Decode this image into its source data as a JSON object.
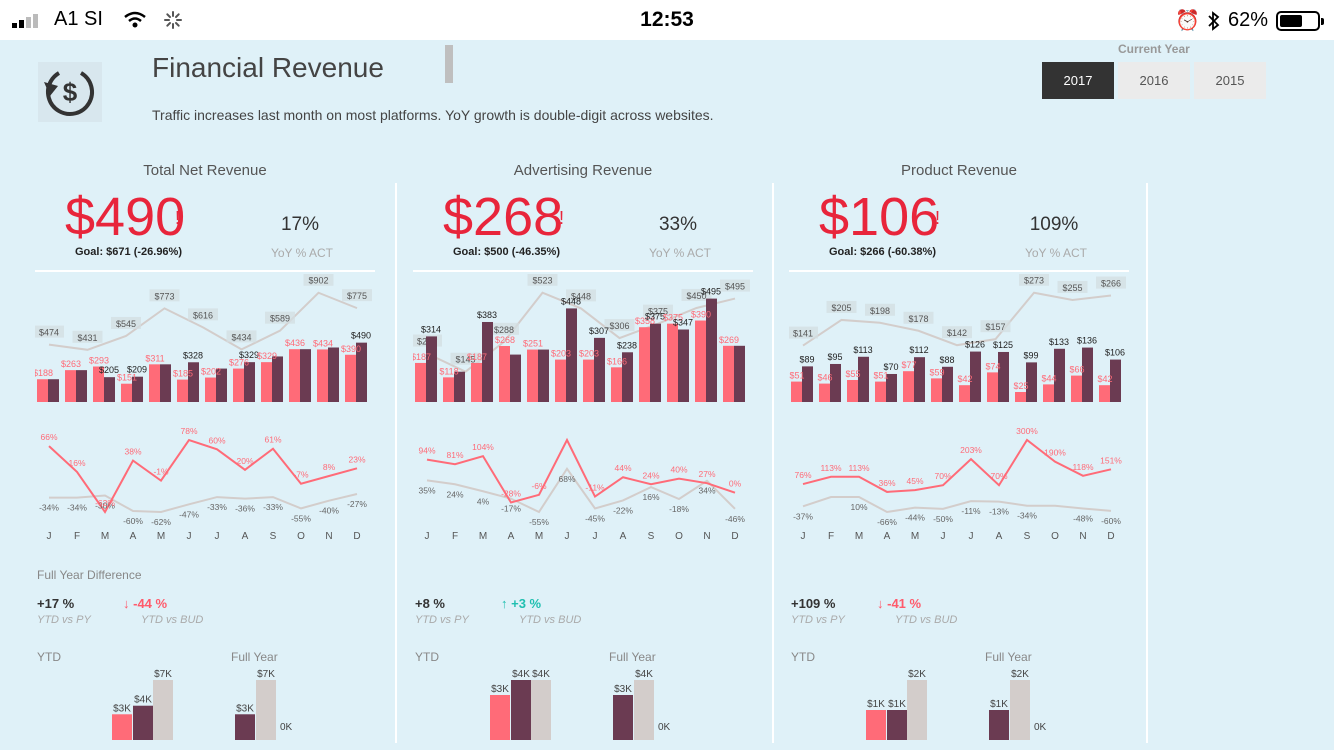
{
  "status": {
    "carrier": "A1 SI",
    "time": "12:53",
    "battery": "62%"
  },
  "header": {
    "title": "Financial Revenue",
    "subtitle": "Traffic increases last month on most platforms. YoY growth is double-digit across websites.",
    "year_label": "Current Year",
    "years": [
      "2017",
      "2016",
      "2015"
    ],
    "selected_year": "2017"
  },
  "months": [
    "J",
    "F",
    "M",
    "A",
    "M",
    "J",
    "J",
    "A",
    "S",
    "O",
    "N",
    "D"
  ],
  "colors": {
    "actual": "#ff6b78",
    "current": "#6b3b52",
    "budget": "#d3cdcb",
    "kpi_red": "#e8253b",
    "teal": "#1fbfb0"
  },
  "panels": [
    {
      "title": "Total Net Revenue",
      "kpi": "$490",
      "alert": "!",
      "goal": "Goal: $671 (-26.96%)",
      "yoy": "17%",
      "yoy_label": "YoY % ACT",
      "full_year_label": "Full Year Difference",
      "ytd_vs_py": "+17 %",
      "ytd_vs_py_label": "YTD vs PY",
      "ytd_vs_bud": "-44 %",
      "ytd_vs_bud_label": "YTD vs BUD",
      "ytd_vs_bud_dir": "down",
      "ytd_label": "YTD",
      "fy_label": "Full Year",
      "bars": {
        "budget": [
          474,
          431,
          545,
          773,
          616,
          434,
          589,
          902,
          775
        ],
        "budget_labels": [
          "$474",
          "$431",
          "$545",
          "$773",
          "$616",
          "$434",
          "$589",
          "$902",
          "$775"
        ],
        "actual": [
          188,
          263,
          293,
          151,
          311,
          185,
          202,
          276,
          329,
          436,
          434,
          390
        ],
        "actual_labels": [
          "$188",
          "$263",
          "$293",
          "$151",
          "$311",
          "$185",
          "$202",
          "$276",
          "$329",
          "$436",
          "$434",
          "$390"
        ],
        "current": [
          188,
          263,
          205,
          209,
          311,
          328,
          276,
          329,
          376,
          436,
          450,
          490
        ],
        "current_labels": [
          "",
          "",
          "$205",
          "$209",
          "",
          "$328",
          "",
          "$329",
          "",
          "",
          "",
          "$490"
        ]
      },
      "lines": {
        "actual_pct": [
          66,
          16,
          -62,
          38,
          -1,
          78,
          60,
          20,
          61,
          -7,
          8,
          23
        ],
        "actual_labels": [
          "66%",
          "16%",
          "-62%",
          "38%",
          "-1%",
          "78%",
          "60%",
          "20%",
          "61%",
          "-7%",
          "8%",
          "23%"
        ],
        "py_pct": [
          -34,
          -34,
          -30,
          -60,
          -62,
          -47,
          -33,
          -36,
          -33,
          -55,
          -40,
          -27
        ],
        "py_labels": [
          "-34%",
          "-34%",
          "-30%",
          "-60%",
          "-62%",
          "-47%",
          "-33%",
          "-36%",
          "-33%",
          "-55%",
          "-40%",
          "-27%"
        ]
      },
      "ytd_bars": {
        "actual": 3,
        "current": 4,
        "budget": 7,
        "labels": [
          "$3K",
          "$4K",
          "$7K"
        ]
      },
      "fy_bars": {
        "current": 3,
        "budget": 7,
        "labels": [
          "$3K",
          "$7K",
          "0K"
        ]
      }
    },
    {
      "title": "Advertising Revenue",
      "kpi": "$268",
      "alert": "!",
      "goal": "Goal: $500 (-46.35%)",
      "yoy": "33%",
      "yoy_label": "YoY % ACT",
      "full_year_label": "",
      "ytd_vs_py": "+8 %",
      "ytd_vs_py_label": "YTD vs PY",
      "ytd_vs_bud": "+3 %",
      "ytd_vs_bud_label": "YTD vs BUD",
      "ytd_vs_bud_dir": "up",
      "ytd_label": "YTD",
      "fy_label": "Full Year",
      "bars": {
        "budget": [
          232,
          145,
          288,
          523,
          448,
          306,
          375,
          450,
          495
        ],
        "budget_labels": [
          "$232",
          "$145",
          "$288",
          "$523",
          "$448",
          "$306",
          "$375",
          "$450",
          "$495"
        ],
        "actual": [
          187,
          118,
          187,
          268,
          251,
          203,
          203,
          166,
          358,
          375,
          390,
          269
        ],
        "actual_labels": [
          "$187",
          "$118",
          "$187",
          "$268",
          "$251",
          "$203",
          "$203",
          "$166",
          "$358",
          "$375",
          "$390",
          "$269"
        ],
        "current": [
          314,
          145,
          383,
          227,
          251,
          448,
          307,
          238,
          375,
          347,
          495,
          269
        ],
        "current_labels": [
          "$314",
          "",
          "$383",
          "",
          "",
          "$448",
          "$307",
          "$238",
          "$375",
          "$347",
          "$495",
          ""
        ]
      },
      "lines": {
        "actual_pct": [
          94,
          81,
          104,
          -28,
          -6,
          150,
          -11,
          44,
          24,
          40,
          27,
          0
        ],
        "actual_labels": [
          "94%",
          "81%",
          "104%",
          "-28%",
          "-6%",
          "",
          "-11%",
          "44%",
          "24%",
          "40%",
          "27%",
          "0%"
        ],
        "py_pct": [
          35,
          24,
          4,
          -17,
          -55,
          68,
          -45,
          -22,
          16,
          -18,
          34,
          -46
        ],
        "py_labels": [
          "35%",
          "24%",
          "4%",
          "-17%",
          "-55%",
          "68%",
          "-45%",
          "-22%",
          "16%",
          "-18%",
          "34%",
          "-46%"
        ]
      },
      "ytd_bars": {
        "actual": 3,
        "current": 4,
        "budget": 4,
        "labels": [
          "$3K",
          "$4K",
          "$4K"
        ]
      },
      "fy_bars": {
        "current": 3,
        "budget": 4,
        "labels": [
          "$3K",
          "$4K",
          "0K"
        ]
      }
    },
    {
      "title": "Product Revenue",
      "kpi": "$106",
      "alert": "!",
      "goal": "Goal: $266 (-60.38%)",
      "yoy": "109%",
      "yoy_label": "YoY % ACT",
      "full_year_label": "",
      "ytd_vs_py": "+109 %",
      "ytd_vs_py_label": "YTD vs PY",
      "ytd_vs_bud": "-41 %",
      "ytd_vs_bud_label": "YTD vs BUD",
      "ytd_vs_bud_dir": "down",
      "ytd_label": "YTD",
      "fy_label": "Full Year",
      "bars": {
        "budget": [
          141,
          205,
          198,
          178,
          142,
          157,
          273,
          255,
          266
        ],
        "budget_labels": [
          "$141",
          "$205",
          "$198",
          "$178",
          "$142",
          "$157",
          "$273",
          "$255",
          "$266"
        ],
        "actual": [
          51,
          46,
          55,
          51,
          77,
          59,
          42,
          74,
          25,
          44,
          66,
          42
        ],
        "actual_labels": [
          "$51",
          "$46",
          "$55",
          "$51",
          "$77",
          "$59",
          "$42",
          "$74",
          "$25",
          "$44",
          "$66",
          "$42"
        ],
        "current": [
          89,
          95,
          113,
          70,
          112,
          88,
          126,
          125,
          99,
          133,
          136,
          106
        ],
        "current_labels": [
          "$89",
          "$95",
          "$113",
          "$70",
          "$112",
          "$88",
          "$126",
          "$125",
          "$99",
          "$133",
          "$136",
          "$106"
        ]
      },
      "lines": {
        "actual_pct": [
          76,
          113,
          113,
          36,
          45,
          70,
          203,
          70,
          300,
          190,
          118,
          151
        ],
        "actual_labels": [
          "76%",
          "113%",
          "113%",
          "36%",
          "45%",
          "70%",
          "203%",
          "70%",
          "300%",
          "190%",
          "118%",
          "151%"
        ],
        "py_pct": [
          -37,
          10,
          10,
          -66,
          -44,
          -50,
          -11,
          -13,
          -34,
          -34,
          -48,
          -60
        ],
        "py_labels": [
          "-37%",
          "",
          "10%",
          "-66%",
          "-44%",
          "-50%",
          "-11%",
          "-13%",
          "-34%",
          "",
          "-48%",
          "-60%"
        ]
      },
      "ytd_bars": {
        "actual": 1,
        "current": 1,
        "budget": 2,
        "labels": [
          "$1K",
          "$1K",
          "$2K"
        ]
      },
      "fy_bars": {
        "current": 1,
        "budget": 2,
        "labels": [
          "$1K",
          "$2K",
          "0K"
        ]
      }
    }
  ]
}
